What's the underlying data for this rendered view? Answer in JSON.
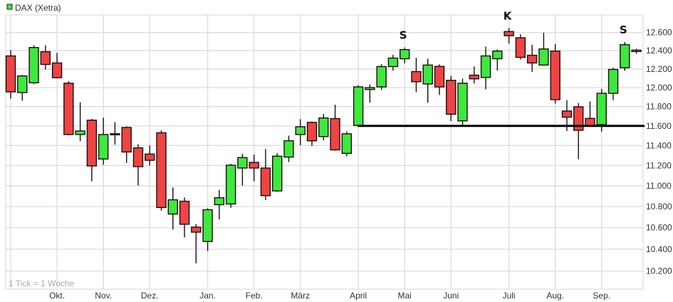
{
  "chart_data": {
    "type": "candlestick",
    "legend": {
      "label": "DAX (Xetra)",
      "color": "#3ee83e",
      "placement": "top-left"
    },
    "note": "1 Tick = 1 Woche",
    "y_scale": "log",
    "ylim": [
      10200,
      12600
    ],
    "y_ticks": [
      "12.600",
      "12.400",
      "12.200",
      "12.000",
      "11.800",
      "11.600",
      "11.400",
      "11.200",
      "11.000",
      "10.800",
      "10.600",
      "10.400",
      "10.200"
    ],
    "y_tick_values": [
      12600,
      12400,
      12200,
      12000,
      11800,
      11600,
      11400,
      11200,
      11000,
      10800,
      10600,
      10400,
      10200
    ],
    "x_ticks": [
      {
        "label": "",
        "week": 0
      },
      {
        "label": "Okt.",
        "week": 4
      },
      {
        "label": "Nov.",
        "week": 8
      },
      {
        "label": "Dez.",
        "week": 12
      },
      {
        "label": "Jan.",
        "week": 17
      },
      {
        "label": "Feb.",
        "week": 21
      },
      {
        "label": "März",
        "week": 25
      },
      {
        "label": "April",
        "week": 30
      },
      {
        "label": "Mai",
        "week": 34
      },
      {
        "label": "Juni",
        "week": 38
      },
      {
        "label": "Juli",
        "week": 43
      },
      {
        "label": "Aug.",
        "week": 47
      },
      {
        "label": "Sep.",
        "week": 51
      }
    ],
    "grid": true,
    "colors": {
      "up": "#3ee83e",
      "down": "#ee4444",
      "outline": "#1a0d0d",
      "grid": "#dcdcdc"
    },
    "ohlc": [
      [
        12342,
        12405,
        11885,
        11955
      ],
      [
        11948,
        12135,
        11862,
        12125
      ],
      [
        12052,
        12459,
        12036,
        12434
      ],
      [
        12388,
        12459,
        12192,
        12249
      ],
      [
        12265,
        12375,
        12098,
        12106
      ],
      [
        12047,
        12070,
        11505,
        11512
      ],
      [
        11512,
        11845,
        11445,
        11548
      ],
      [
        11659,
        11672,
        11044,
        11196
      ],
      [
        11265,
        11685,
        11207,
        11512
      ],
      [
        11510,
        11638,
        11409,
        11520
      ],
      [
        11584,
        11595,
        11226,
        11335
      ],
      [
        11377,
        11412,
        11002,
        11189
      ],
      [
        11314,
        11400,
        11200,
        11252
      ],
      [
        11529,
        11555,
        10761,
        10791
      ],
      [
        10729,
        10985,
        10582,
        10865
      ],
      [
        10851,
        10887,
        10509,
        10632
      ],
      [
        10605,
        10634,
        10271,
        10558
      ],
      [
        10471,
        10784,
        10383,
        10770
      ],
      [
        10818,
        10960,
        10678,
        10885
      ],
      [
        10825,
        11217,
        10788,
        11203
      ],
      [
        11175,
        11316,
        11002,
        11279
      ],
      [
        11231,
        11309,
        11044,
        11175
      ],
      [
        11175,
        11365,
        10862,
        10905
      ],
      [
        10951,
        11323,
        10942,
        11293
      ],
      [
        11284,
        11500,
        11235,
        11448
      ],
      [
        11512,
        11669,
        11402,
        11591
      ],
      [
        11636,
        11646,
        11395,
        11448
      ],
      [
        11491,
        11723,
        11452,
        11682
      ],
      [
        11675,
        11820,
        11349,
        11356
      ],
      [
        11321,
        11543,
        11291,
        11519
      ],
      [
        11605,
        12026,
        11605,
        12008
      ],
      [
        11980,
        12034,
        11840,
        12000
      ],
      [
        12008,
        12252,
        11975,
        12226
      ],
      [
        12226,
        12354,
        12182,
        12318
      ],
      [
        12311,
        12434,
        12260,
        12411
      ],
      [
        12172,
        12321,
        11952,
        12063
      ],
      [
        12039,
        12311,
        11840,
        12242
      ],
      [
        12228,
        12249,
        11922,
        12008
      ],
      [
        12078,
        12125,
        11649,
        11721
      ],
      [
        11652,
        12096,
        11605,
        12047
      ],
      [
        12133,
        12228,
        12044,
        12094
      ],
      [
        12109,
        12444,
        11982,
        12342
      ],
      [
        12311,
        12413,
        12182,
        12395
      ],
      [
        12611,
        12650,
        12477,
        12565
      ],
      [
        12542,
        12580,
        12303,
        12326
      ],
      [
        12349,
        12465,
        12169,
        12265
      ],
      [
        12242,
        12598,
        12240,
        12418
      ],
      [
        12395,
        12472,
        11832,
        11873
      ],
      [
        11754,
        11867,
        11548,
        11690
      ],
      [
        11798,
        11838,
        11263,
        11555
      ],
      [
        11677,
        11853,
        11600,
        11605
      ],
      [
        11613,
        11987,
        11541,
        11940
      ],
      [
        11940,
        12213,
        11867,
        12195
      ],
      [
        12213,
        12495,
        12180,
        12465
      ],
      [
        12390,
        12421,
        12365,
        12405
      ]
    ],
    "support_line": {
      "value": 11600,
      "from_week": 30
    },
    "annotations": [
      {
        "text": "S",
        "week": 34
      },
      {
        "text": "K",
        "week": 43
      },
      {
        "text": "S",
        "week": 53
      }
    ]
  }
}
